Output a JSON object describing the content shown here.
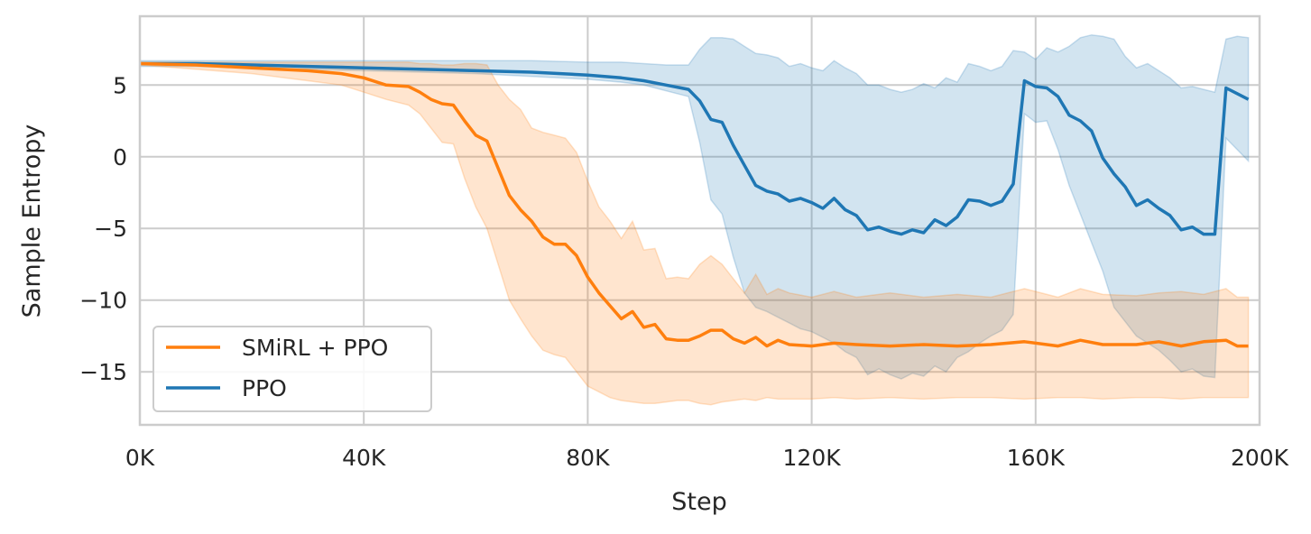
{
  "chart_data": {
    "type": "line",
    "xlabel": "Step",
    "ylabel": "Sample Entropy",
    "xlim": [
      0,
      200000
    ],
    "ylim": [
      -18.7,
      9.8
    ],
    "xticks": [
      0,
      40000,
      80000,
      120000,
      160000,
      200000
    ],
    "xtick_labels": [
      "0K",
      "40K",
      "80K",
      "120K",
      "160K",
      "200K"
    ],
    "yticks": [
      5,
      0,
      -5,
      -10,
      -15
    ],
    "ytick_labels": [
      "5",
      "0",
      "−5",
      "−10",
      "−15"
    ],
    "grid": true,
    "legend_position": "lower-left",
    "series": [
      {
        "name": "SMiRL + PPO",
        "color": "#ff7f0e",
        "x": [
          0,
          10000,
          20000,
          30000,
          36000,
          40000,
          44000,
          48000,
          50000,
          52000,
          54000,
          56000,
          58000,
          60000,
          62000,
          64000,
          66000,
          68000,
          70000,
          72000,
          74000,
          76000,
          78000,
          80000,
          82000,
          84000,
          86000,
          88000,
          90000,
          92000,
          94000,
          96000,
          98000,
          100000,
          102000,
          104000,
          106000,
          108000,
          110000,
          112000,
          114000,
          116000,
          120000,
          124000,
          128000,
          134000,
          140000,
          146000,
          152000,
          158000,
          164000,
          168000,
          172000,
          178000,
          182000,
          186000,
          190000,
          194000,
          196000,
          198000
        ],
        "y": [
          6.5,
          6.4,
          6.2,
          6.0,
          5.8,
          5.5,
          5.0,
          4.9,
          4.5,
          4.0,
          3.7,
          3.6,
          2.5,
          1.5,
          1.1,
          -0.8,
          -2.7,
          -3.7,
          -4.5,
          -5.6,
          -6.1,
          -6.1,
          -6.9,
          -8.4,
          -9.5,
          -10.4,
          -11.3,
          -10.8,
          -11.9,
          -11.7,
          -12.7,
          -12.8,
          -12.8,
          -12.5,
          -12.1,
          -12.1,
          -12.7,
          -13.0,
          -12.6,
          -13.2,
          -12.8,
          -13.1,
          -13.2,
          -13.0,
          -13.1,
          -13.2,
          -13.1,
          -13.2,
          -13.1,
          -12.9,
          -13.2,
          -12.8,
          -13.1,
          -13.1,
          -12.9,
          -13.2,
          -12.9,
          -12.8,
          -13.2,
          -13.2
        ],
        "y_lower": [
          6.4,
          6.1,
          5.8,
          5.3,
          5.0,
          4.5,
          4.0,
          3.6,
          3.0,
          2.0,
          1.0,
          0.9,
          -1.5,
          -3.5,
          -5.0,
          -7.5,
          -10.0,
          -11.3,
          -12.5,
          -13.5,
          -13.8,
          -14.0,
          -15.0,
          -16.0,
          -16.4,
          -16.8,
          -17.0,
          -17.1,
          -17.2,
          -17.2,
          -17.1,
          -17.0,
          -17.0,
          -17.2,
          -17.3,
          -17.1,
          -17.0,
          -16.9,
          -17.0,
          -16.8,
          -16.9,
          -16.9,
          -16.9,
          -16.8,
          -16.9,
          -16.8,
          -16.9,
          -16.8,
          -16.8,
          -16.9,
          -16.8,
          -16.8,
          -16.9,
          -16.8,
          -16.8,
          -16.9,
          -16.8,
          -16.8,
          -16.8,
          -16.8
        ],
        "y_upper": [
          6.6,
          6.6,
          6.6,
          6.6,
          6.6,
          6.6,
          6.6,
          6.6,
          6.5,
          6.5,
          6.4,
          6.4,
          6.5,
          6.5,
          6.4,
          5.0,
          4.0,
          3.3,
          2.0,
          1.7,
          1.5,
          1.3,
          0.3,
          -1.7,
          -3.5,
          -4.5,
          -5.7,
          -4.5,
          -6.5,
          -6.4,
          -8.5,
          -8.4,
          -8.5,
          -7.5,
          -6.9,
          -7.5,
          -8.5,
          -9.5,
          -8.2,
          -9.6,
          -9.2,
          -9.5,
          -9.8,
          -9.4,
          -9.8,
          -9.5,
          -9.8,
          -9.6,
          -9.8,
          -9.2,
          -9.8,
          -9.2,
          -9.6,
          -9.7,
          -9.5,
          -9.4,
          -9.6,
          -9.2,
          -9.8,
          -9.8
        ]
      },
      {
        "name": "PPO",
        "color": "#1f77b4",
        "x": [
          0,
          10000,
          20000,
          30000,
          40000,
          50000,
          60000,
          70000,
          80000,
          86000,
          90000,
          94000,
          98000,
          100000,
          102000,
          104000,
          106000,
          108000,
          110000,
          112000,
          114000,
          116000,
          118000,
          120000,
          122000,
          124000,
          126000,
          128000,
          130000,
          132000,
          134000,
          136000,
          138000,
          140000,
          142000,
          144000,
          146000,
          148000,
          150000,
          152000,
          154000,
          156000,
          158000,
          160000,
          162000,
          164000,
          166000,
          168000,
          170000,
          172000,
          174000,
          176000,
          178000,
          180000,
          182000,
          184000,
          186000,
          188000,
          190000,
          192000,
          194000,
          196000,
          198000
        ],
        "y": [
          6.5,
          6.5,
          6.4,
          6.3,
          6.2,
          6.1,
          6.0,
          5.9,
          5.7,
          5.5,
          5.3,
          5.0,
          4.7,
          3.9,
          2.6,
          2.4,
          0.8,
          -0.6,
          -2.0,
          -2.4,
          -2.6,
          -3.1,
          -2.9,
          -3.2,
          -3.6,
          -2.9,
          -3.7,
          -4.1,
          -5.1,
          -4.9,
          -5.2,
          -5.4,
          -5.1,
          -5.3,
          -4.4,
          -4.8,
          -4.2,
          -3.0,
          -3.1,
          -3.4,
          -3.1,
          -1.9,
          5.3,
          4.9,
          4.8,
          4.2,
          2.9,
          2.5,
          1.8,
          -0.1,
          -1.2,
          -2.1,
          -3.4,
          -3.0,
          -3.6,
          -4.1,
          -5.1,
          -4.9,
          -5.4,
          -5.4,
          4.8,
          4.4,
          4.0
        ],
        "y_lower": [
          6.3,
          6.3,
          6.2,
          6.1,
          6.0,
          5.9,
          5.8,
          5.6,
          5.4,
          5.2,
          5.0,
          4.6,
          4.2,
          1.0,
          -3.0,
          -4.0,
          -7.0,
          -9.5,
          -10.5,
          -10.8,
          -11.2,
          -11.6,
          -12.0,
          -12.2,
          -12.6,
          -13.0,
          -13.6,
          -14.0,
          -15.2,
          -14.8,
          -15.2,
          -15.5,
          -15.1,
          -15.3,
          -14.6,
          -15.0,
          -14.0,
          -13.6,
          -13.0,
          -12.5,
          -12.1,
          -11.0,
          3.0,
          2.4,
          2.5,
          0.5,
          -2.0,
          -4.0,
          -6.0,
          -8.0,
          -10.5,
          -11.5,
          -12.5,
          -13.0,
          -13.5,
          -14.2,
          -15.0,
          -14.8,
          -15.3,
          -15.4,
          1.3,
          0.5,
          -0.3
        ],
        "y_upper": [
          6.7,
          6.7,
          6.7,
          6.7,
          6.7,
          6.7,
          6.7,
          6.7,
          6.6,
          6.6,
          6.5,
          6.4,
          6.4,
          7.5,
          8.3,
          8.3,
          8.2,
          7.7,
          7.2,
          7.1,
          6.9,
          6.3,
          6.5,
          6.2,
          6.0,
          6.7,
          6.2,
          5.8,
          5.0,
          5.0,
          4.7,
          4.5,
          4.7,
          5.1,
          4.8,
          5.5,
          5.2,
          6.5,
          6.3,
          6.0,
          6.3,
          7.4,
          7.3,
          6.8,
          7.6,
          7.3,
          7.7,
          8.3,
          8.5,
          8.4,
          8.2,
          7.0,
          6.2,
          6.5,
          6.0,
          5.5,
          4.8,
          4.9,
          4.7,
          4.5,
          8.2,
          8.4,
          8.3
        ]
      }
    ]
  }
}
